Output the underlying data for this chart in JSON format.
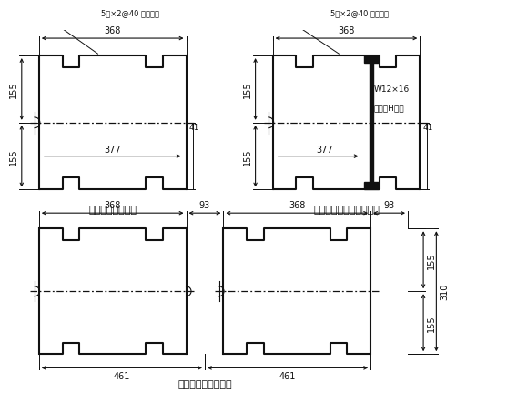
{
  "bg_color": "#ffffff",
  "line_color": "#111111",
  "title1": "压型钢板横截面图",
  "title2": "加强型压型钢板横截面图",
  "title3": "压型钢板拼装示意图",
  "label_rib": "5宽×2@40 深加劲肋",
  "label_w": "W12×16",
  "label_h": "宽翼缘H型钢",
  "dim_368": "368",
  "dim_377": "377",
  "dim_41": "41",
  "dim_155": "155",
  "dim_93": "93",
  "dim_461": "461",
  "dim_310": "310"
}
